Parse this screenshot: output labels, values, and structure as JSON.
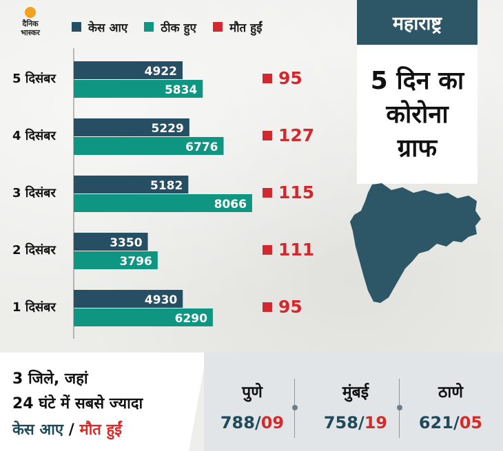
{
  "brand": {
    "logo_line1": "दैनिक",
    "logo_line2": "भास्कर",
    "logo_color": "#f4a21d"
  },
  "colors": {
    "cases": "#264f63",
    "recovered": "#0f9683",
    "deaths": "#d3282d",
    "header_bg": "#2d5667"
  },
  "panel": {
    "state": "महाराष्ट्र",
    "title_lines": [
      "5 दिन का",
      "कोरोना",
      "ग्राफ"
    ],
    "map_icon": "maharashtra-map-icon"
  },
  "legend": [
    {
      "label": "केस आए",
      "color": "#264f63"
    },
    {
      "label": "ठीक हुए",
      "color": "#0f9683"
    },
    {
      "label": "मौत हुईं",
      "color": "#d3282d"
    }
  ],
  "chart_data": {
    "type": "bar",
    "orientation": "horizontal",
    "categories": [
      "5 दिसंबर",
      "4 दिसंबर",
      "3 दिसंबर",
      "2 दिसंबर",
      "1 दिसंबर"
    ],
    "series": [
      {
        "name": "केस आए",
        "values": [
          4922,
          5229,
          5182,
          3350,
          4930
        ]
      },
      {
        "name": "ठीक हुए",
        "values": [
          5834,
          6776,
          8066,
          3796,
          6290
        ]
      },
      {
        "name": "मौत हुईं",
        "values": [
          95,
          127,
          115,
          111,
          95
        ]
      }
    ],
    "xlim": [
      0,
      9000
    ],
    "grid": false,
    "legend_position": "top"
  },
  "bottom": {
    "lines": [
      "3 जिले, जहां",
      "24 घंटे में सबसे ज्यादा"
    ],
    "line3_cases": "केस आए",
    "line3_sep": " / ",
    "line3_deaths": "मौत हुईं",
    "cities": [
      {
        "name": "पुणे",
        "cases": "788",
        "deaths": "09"
      },
      {
        "name": "मुंबई",
        "cases": "758",
        "deaths": "19"
      },
      {
        "name": "ठाणे",
        "cases": "621",
        "deaths": "05"
      }
    ],
    "separator": "/"
  }
}
